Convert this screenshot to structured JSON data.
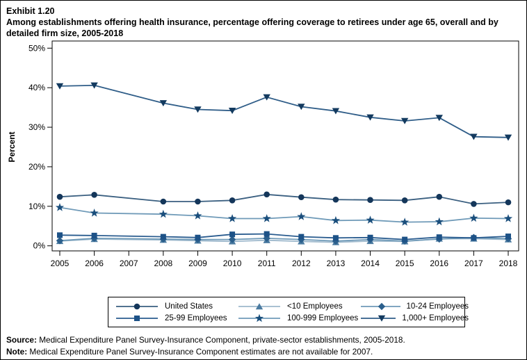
{
  "header": {
    "exhibit": "Exhibit 1.20",
    "title": "Among establishments offering health insurance, percentage offering coverage to retirees under age 65, overall and by detailed firm size, 2005-2018"
  },
  "chart_data": {
    "type": "line",
    "title": "Among establishments offering health insurance, percentage offering coverage to retirees under age 65, overall and by detailed firm size, 2005-2018",
    "xlabel": "",
    "ylabel": "Percent",
    "ylim": [
      0,
      50
    ],
    "ytick_labels": [
      "0%",
      "10%",
      "20%",
      "30%",
      "40%",
      "50%"
    ],
    "x_ticks": [
      2005,
      2006,
      2007,
      2008,
      2009,
      2010,
      2011,
      2012,
      2013,
      2014,
      2015,
      2016,
      2017,
      2018
    ],
    "data_years": [
      2005,
      2006,
      2008,
      2009,
      2010,
      2011,
      2012,
      2013,
      2014,
      2015,
      2016,
      2017,
      2018
    ],
    "missing_year": 2007,
    "legend_position": "bottom",
    "grid": false,
    "series": [
      {
        "name": "United States",
        "marker": "circle",
        "color": "#14365a",
        "line_color": "#3a5f80",
        "values": [
          12.4,
          12.9,
          11.2,
          11.2,
          11.5,
          13.0,
          12.3,
          11.7,
          11.6,
          11.5,
          12.4,
          10.6,
          11.0
        ]
      },
      {
        "name": "<10 Employees",
        "marker": "triangle-up",
        "color": "#4a7aa0",
        "line_color": "#9db8cc",
        "values": [
          1.2,
          1.7,
          1.5,
          1.3,
          1.1,
          1.4,
          1.1,
          0.9,
          1.2,
          1.1,
          1.8,
          1.8,
          1.6
        ]
      },
      {
        "name": "10-24 Employees",
        "marker": "diamond",
        "color": "#2b5f8c",
        "line_color": "#6f9ab8",
        "values": [
          1.3,
          1.9,
          1.7,
          1.6,
          1.6,
          1.9,
          1.6,
          1.2,
          1.6,
          1.2,
          1.7,
          2.1,
          1.8
        ]
      },
      {
        "name": "25-99 Employees",
        "marker": "square",
        "color": "#1d5287",
        "line_color": "#2a5c8f",
        "values": [
          2.7,
          2.6,
          2.3,
          2.1,
          2.9,
          3.0,
          2.3,
          2.0,
          2.1,
          1.6,
          2.2,
          2.0,
          2.4
        ]
      },
      {
        "name": "100-999 Employees",
        "marker": "star",
        "color": "#1a4e7c",
        "line_color": "#6f9ab8",
        "values": [
          9.7,
          8.3,
          8.0,
          7.6,
          6.9,
          6.9,
          7.4,
          6.4,
          6.5,
          6.0,
          6.1,
          7.0,
          6.9
        ]
      },
      {
        "name": "1,000+ Employees",
        "marker": "triangle-down",
        "color": "#133a5f",
        "line_color": "#2f5d88",
        "values": [
          40.4,
          40.6,
          36.1,
          34.5,
          34.2,
          37.6,
          35.2,
          34.1,
          32.5,
          31.6,
          32.4,
          27.6,
          27.4
        ]
      }
    ]
  },
  "footer": {
    "source_label": "Source:",
    "source_text": " Medical Expenditure Panel Survey-Insurance Component, private-sector establishments, 2005-2018.",
    "note_label": "Note:",
    "note_text": " Medical Expenditure Panel Survey-Insurance Component estimates are not available for 2007."
  }
}
